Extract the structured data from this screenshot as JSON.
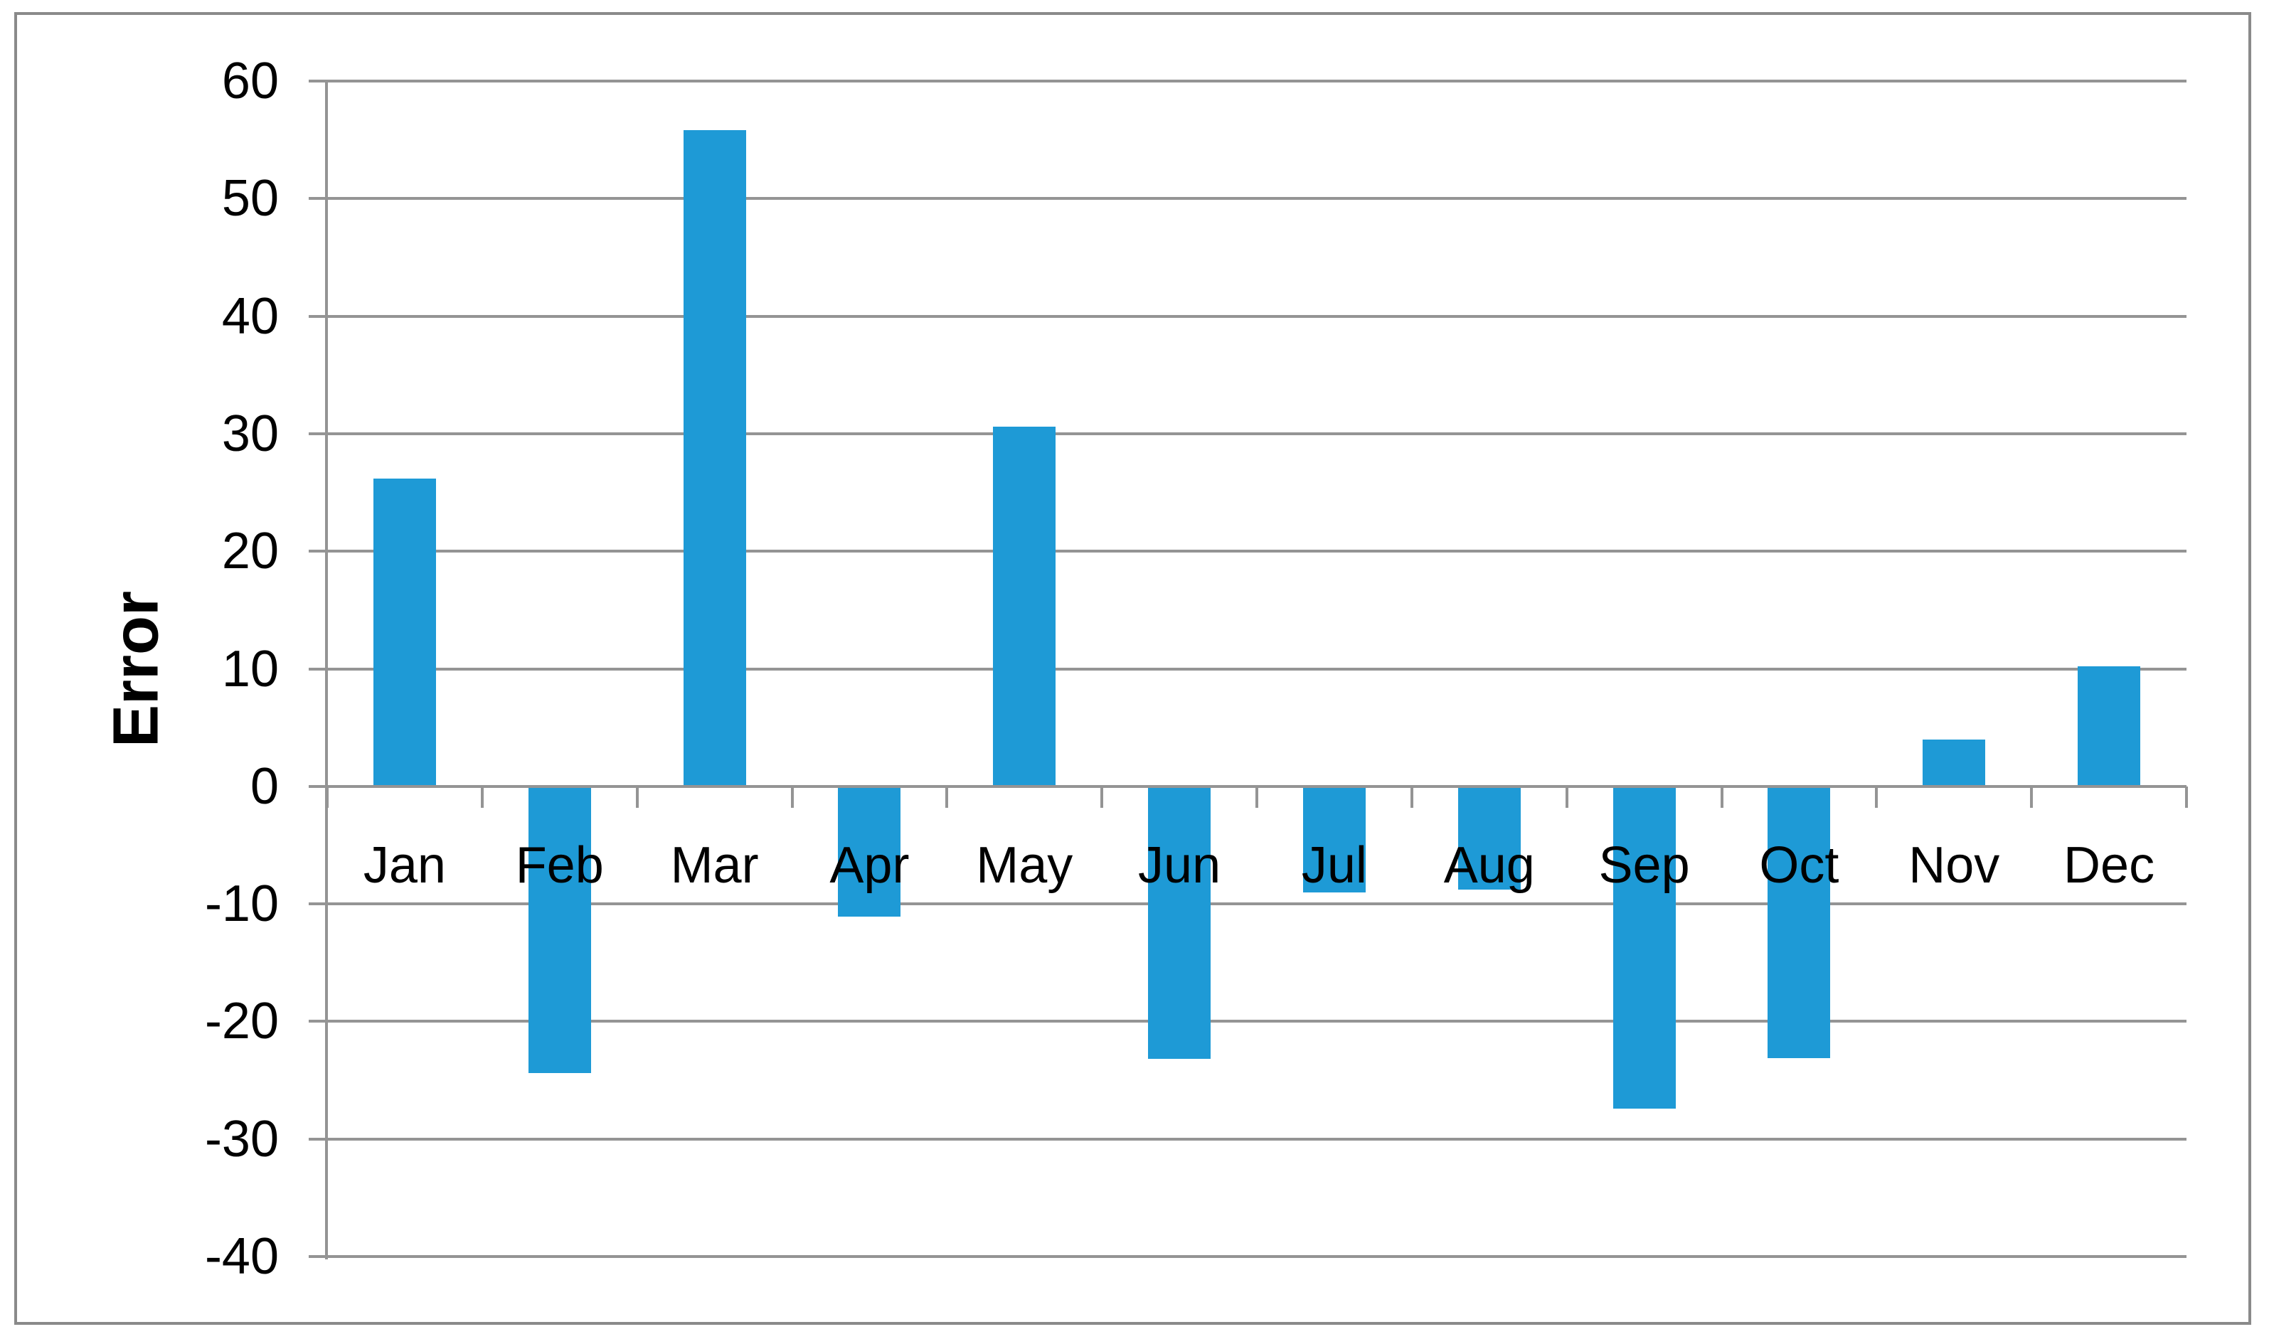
{
  "chart_data": {
    "type": "bar",
    "title": "",
    "ylabel": "Error",
    "xlabel": "",
    "categories": [
      "Jan",
      "Feb",
      "Mar",
      "Apr",
      "May",
      "Jun",
      "Jul",
      "Aug",
      "Sep",
      "Oct",
      "Nov",
      "Dec"
    ],
    "series": [
      {
        "name": "Error",
        "values": [
          26.2,
          -24.4,
          55.8,
          -11.1,
          30.6,
          -23.2,
          -9.0,
          -8.8,
          -27.4,
          -23.1,
          4.0,
          10.2
        ]
      }
    ],
    "ylim": [
      -40,
      60
    ],
    "yticks": [
      60,
      50,
      40,
      30,
      20,
      10,
      0,
      -10,
      -20,
      -30,
      -40
    ],
    "grid": true,
    "legend": false,
    "colors": {
      "bar": "#1E9AD6",
      "gridline": "#949494",
      "axis": "#8a8a8a",
      "chart_border": "#8a8a8a",
      "text": "#000000",
      "background": "#ffffff"
    }
  }
}
